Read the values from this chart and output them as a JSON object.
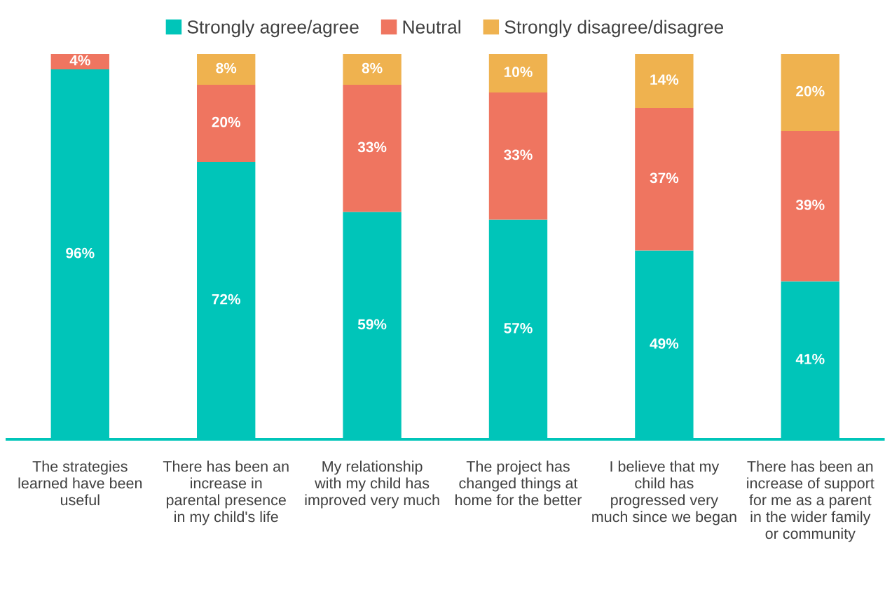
{
  "chart_data": {
    "type": "bar",
    "stacked": true,
    "categories": [
      "The strategies learned have been useful",
      "There has been an increase in parental presence in my child's life",
      "My relationship with my child has improved very much",
      "The project has changed things at home for the better",
      "I believe that my child has progressed very much since we began",
      "There has been an increase of support for me as a parent in the wider family or community"
    ],
    "series": [
      {
        "name": "Strongly agree/agree",
        "color": "#00c5b9",
        "values": [
          96,
          72,
          59,
          57,
          49,
          41
        ],
        "value_labels": [
          "96%",
          "72%",
          "59%",
          "57%",
          "49%",
          "41%"
        ]
      },
      {
        "name": "Neutral",
        "color": "#ef7560",
        "values": [
          4,
          20,
          33,
          33,
          37,
          39
        ],
        "value_labels": [
          "4%",
          "20%",
          "33%",
          "33%",
          "37%",
          "39%"
        ]
      },
      {
        "name": "Strongly disagree/disagree",
        "color": "#efb24f",
        "values": [
          null,
          8,
          8,
          10,
          14,
          20
        ],
        "value_labels": [
          null,
          "8%",
          "8%",
          "10%",
          "14%",
          "20%"
        ]
      }
    ],
    "legend": "top",
    "grid": false,
    "tick_labels": "x"
  }
}
